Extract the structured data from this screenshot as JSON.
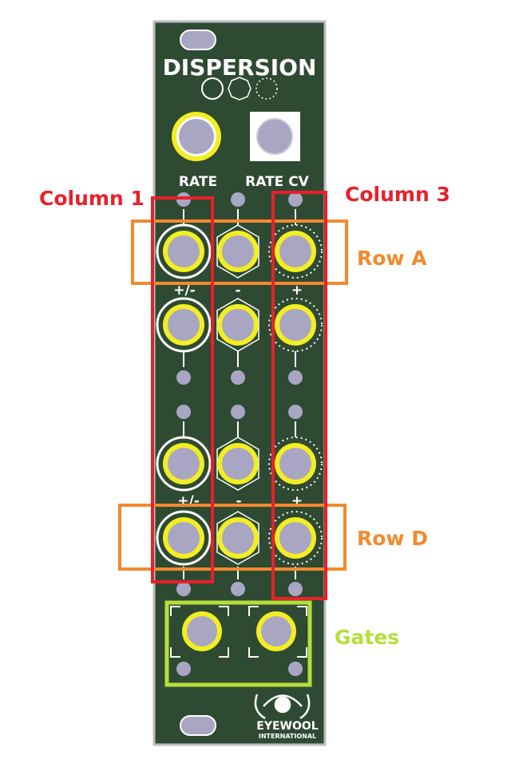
{
  "module": {
    "title": "DISPERSION",
    "rate_label": "RATE",
    "rate_cv_label": "RATE CV",
    "brand_name": "EYEWOOL",
    "brand_sub": "INTERNATIONAL",
    "row_labels": [
      "+/-",
      "-",
      "+"
    ],
    "colors": {
      "panel": "#2f4a33",
      "panel_edge": "#b9bec2",
      "jack_ring": "#f2ee22",
      "jack_core": "#a9a6c4",
      "led": "#a9a6c4",
      "text": "#ffffff"
    }
  },
  "callouts": {
    "column1": "Column 1",
    "column3": "Column 3",
    "row_a": "Row A",
    "row_d": "Row D",
    "gates": "Gates",
    "colors": {
      "column": "#e8202a",
      "row": "#f28a2e",
      "gates": "#b5de3a"
    }
  }
}
